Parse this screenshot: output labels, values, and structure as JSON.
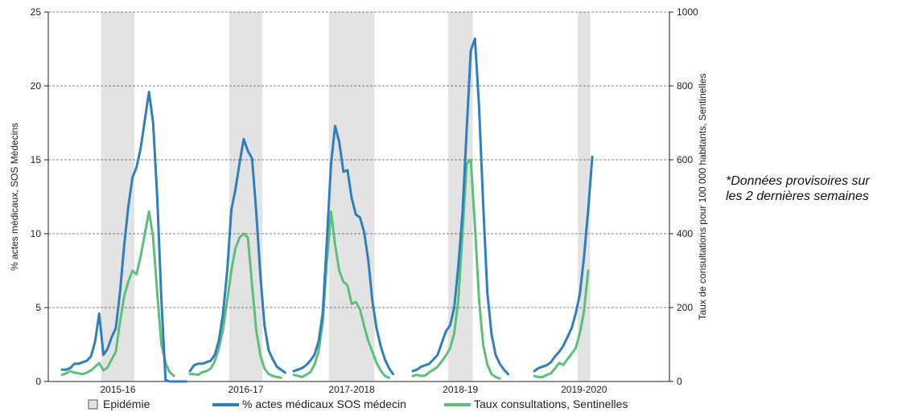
{
  "note": {
    "line1": "*Données provisoires sur",
    "line2": "les 2 dernières semaines"
  },
  "chart_data": {
    "type": "line",
    "ylabel": "% actes médicaux, SOS Médecins",
    "y2label": "Taux de consultations pour 100 000 habitants, Sentinelles",
    "ylim": [
      0,
      25
    ],
    "y2lim": [
      0,
      1000
    ],
    "yticks": [
      0,
      5,
      10,
      15,
      20,
      25
    ],
    "y2ticks": [
      0,
      200,
      400,
      600,
      800,
      1000
    ],
    "grid": "horizontal dashed",
    "legend_position": "bottom",
    "legend": {
      "epidemic": "Epidémie",
      "sos": "% actes médicaux SOS médecin",
      "sentinel": "Taux consultations, Sentinelles"
    },
    "colors": {
      "epidemic": "#e3e3e3",
      "sos": "#2f7fbf",
      "sentinel": "#5cc07a"
    },
    "seasons": [
      {
        "label": "2015-16",
        "epidemic": [
          10,
          17
        ],
        "sos": [
          0.8,
          0.8,
          0.9,
          1.2,
          1.2,
          1.3,
          1.4,
          1.7,
          2.7,
          4.6,
          1.8,
          2.2,
          3,
          3.6,
          6,
          9.2,
          11.8,
          13.8,
          14.5,
          15.8,
          17.7,
          19.6,
          17.5,
          12.5,
          5.5,
          0.1,
          0,
          0,
          0,
          0,
          0
        ],
        "sentinel": [
          18,
          22,
          28,
          24,
          22,
          20,
          24,
          30,
          40,
          50,
          30,
          38,
          60,
          80,
          160,
          230,
          270,
          300,
          290,
          340,
          400,
          460,
          390,
          240,
          100,
          50,
          25,
          15
        ]
      },
      {
        "label": "2016-17",
        "sos": [
          0.7,
          1.1,
          1.2,
          1.2,
          1.3,
          1.4,
          1.8,
          2.8,
          4.6,
          7.5,
          11.6,
          13,
          14.8,
          16.4,
          15.6,
          15.1,
          11.5,
          7.2,
          3.8,
          2.1,
          1.5,
          1,
          0.8,
          0.6
        ],
        "sentinel": [
          20,
          20,
          18,
          25,
          28,
          35,
          55,
          90,
          140,
          220,
          300,
          360,
          390,
          400,
          390,
          260,
          140,
          70,
          35,
          20,
          15,
          12,
          10
        ],
        "epidemic": [
          10,
          17
        ]
      },
      {
        "label": "2017-2018",
        "epidemic": [
          9,
          19
        ],
        "sos": [
          0.7,
          0.8,
          0.9,
          1.1,
          1.4,
          1.8,
          2.7,
          4.6,
          9.5,
          14.7,
          17.3,
          16.2,
          14.2,
          14.3,
          12.4,
          11.3,
          11.1,
          10.1,
          8.2,
          5.4,
          3.6,
          2.4,
          1.5,
          0.9,
          0.5
        ],
        "sentinel": [
          18,
          15,
          12,
          18,
          25,
          45,
          80,
          160,
          320,
          460,
          370,
          300,
          270,
          260,
          210,
          215,
          195,
          150,
          110,
          80,
          50,
          30,
          15,
          10
        ]
      },
      {
        "label": "2018-19",
        "epidemic": [
          9,
          14
        ],
        "sos": [
          0.7,
          0.8,
          1,
          1.1,
          1.2,
          1.5,
          1.8,
          2.6,
          3.4,
          3.8,
          5,
          7.8,
          11.4,
          17,
          22.4,
          23.2,
          18.6,
          12,
          6,
          3.2,
          1.8,
          1.2,
          0.8,
          0.5
        ],
        "sentinel": [
          15,
          18,
          15,
          16,
          25,
          32,
          40,
          55,
          70,
          90,
          130,
          220,
          400,
          590,
          600,
          420,
          220,
          100,
          45,
          20,
          12,
          8
        ]
      },
      {
        "label": "2019-2020",
        "epidemic": [
          11,
          13
        ],
        "sos": [
          0.7,
          0.9,
          1,
          1.1,
          1.3,
          1.7,
          2,
          2.4,
          3,
          3.6,
          4.6,
          5.9,
          8.4,
          11.6,
          15.2
        ],
        "sentinel": [
          15,
          12,
          12,
          18,
          22,
          35,
          50,
          45,
          60,
          75,
          90,
          130,
          190,
          300
        ]
      }
    ]
  }
}
